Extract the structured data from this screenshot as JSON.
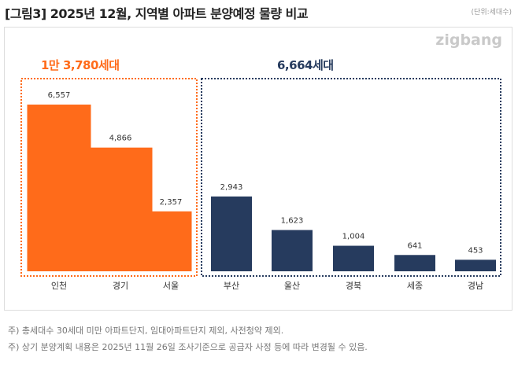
{
  "title": "[그림3] 2025년 12월, 지역별 아파트 분양예정 물량 비교",
  "unit": "(단위:세대수)",
  "logo": "zigbang",
  "groups": [
    {
      "total": "1만 3,780세대",
      "color": "#ff6b1a"
    },
    {
      "total": "6,664세대",
      "color": "#263b5e"
    }
  ],
  "chart_data": {
    "type": "bar",
    "categories": [
      "인천",
      "경기",
      "서울",
      "부산",
      "울산",
      "경북",
      "세종",
      "경남"
    ],
    "values": [
      6557,
      4866,
      2357,
      2943,
      1623,
      1004,
      641,
      453
    ],
    "value_labels": [
      "6,557",
      "4,866",
      "2,357",
      "2,943",
      "1,623",
      "1,004",
      "641",
      "453"
    ],
    "bar_colors": [
      "#ff6b1a",
      "#ff6b1a",
      "#ff6b1a",
      "#263b5e",
      "#263b5e",
      "#263b5e",
      "#263b5e",
      "#263b5e"
    ],
    "ylim": [
      0,
      7000
    ],
    "grid": false
  },
  "notes": [
    "주) 총세대수 30세대 미만 아파트단지, 임대아파트단지 제외, 사전청약 제외.",
    "주) 상기 분양계획 내용은 2025년 11월 26일 조사기준으로 공급자 사정 등에 따라 변경될 수 있음."
  ]
}
